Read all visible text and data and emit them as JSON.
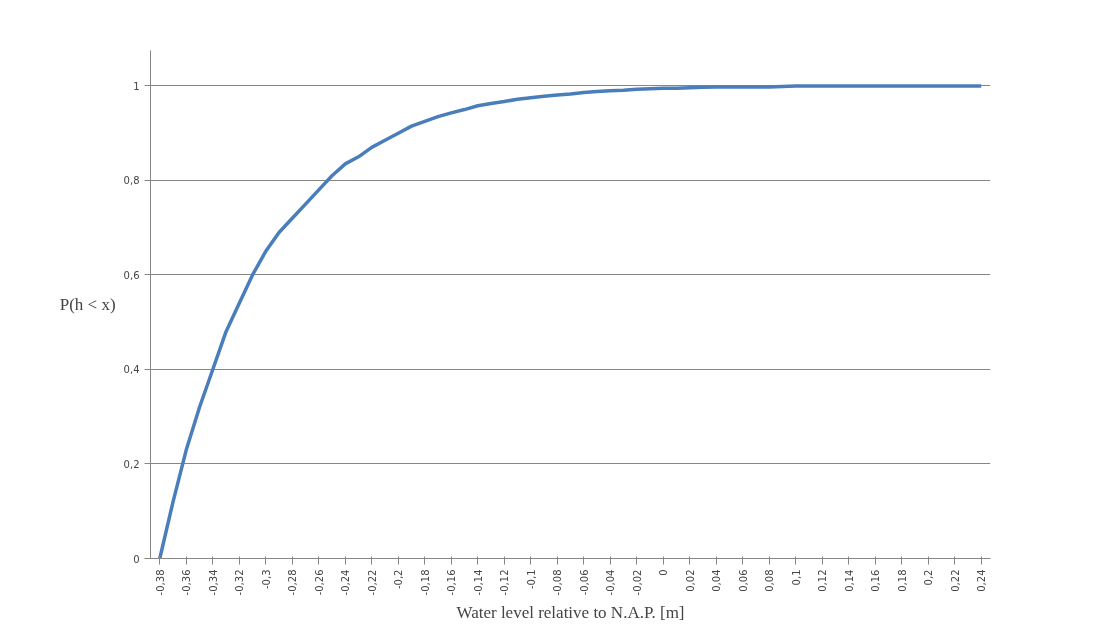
{
  "chart_data": {
    "type": "line",
    "xlabel": "Water level relative to N.A.P. [m]",
    "ylabel": "P(h < x)",
    "categories": [
      "-0,38",
      null,
      "-0,36",
      null,
      "-0,34",
      null,
      "-0,32",
      null,
      "-0,3",
      null,
      "-0,28",
      null,
      "-0,26",
      null,
      "-0,24",
      null,
      "-0,22",
      null,
      "-0,2",
      null,
      "-0,18",
      null,
      "-0,16",
      null,
      "-0,14",
      null,
      "-0,12",
      null,
      "-0,1",
      null,
      "-0,08",
      null,
      "-0,06",
      null,
      "-0,04",
      null,
      "-0,02",
      null,
      "0",
      null,
      "0,02",
      null,
      "0,04",
      null,
      "0,06",
      null,
      "0,08",
      null,
      "0,1",
      null,
      "0,12",
      null,
      "0,14",
      null,
      "0,16",
      null,
      "0,18",
      null,
      "0,2",
      null,
      "0,22",
      null,
      "0,24"
    ],
    "series": [
      {
        "color": "#4a7ebb",
        "values": [
          0,
          0.12,
          0.23,
          0.32,
          0.4,
          0.48,
          0.54,
          0.6,
          0.65,
          0.69,
          0.72,
          0.75,
          0.78,
          0.81,
          0.835,
          0.85,
          0.87,
          0.885,
          0.9,
          0.915,
          0.925,
          0.935,
          0.943,
          0.95,
          0.958,
          0.963,
          0.967,
          0.972,
          0.975,
          0.978,
          0.981,
          0.983,
          0.986,
          0.988,
          0.99,
          0.991,
          0.993,
          0.994,
          0.995,
          0.995,
          0.996,
          0.997,
          0.998,
          0.998,
          0.998,
          0.998,
          0.998,
          0.999,
          1,
          1,
          1,
          1,
          1,
          1,
          1,
          1,
          1,
          1,
          1,
          1,
          1,
          1,
          1
        ]
      }
    ],
    "ylim": [
      0,
      1.075
    ],
    "yticks": [
      0,
      {
        "value": 0.2,
        "label": "0,2"
      },
      {
        "value": 0.4,
        "label": "0,4"
      },
      {
        "value": 0.6,
        "label": "0,6"
      },
      {
        "value": 0.8,
        "label": "0,8"
      },
      1
    ],
    "grid": "y",
    "marker": "none",
    "line_style": "solid"
  }
}
